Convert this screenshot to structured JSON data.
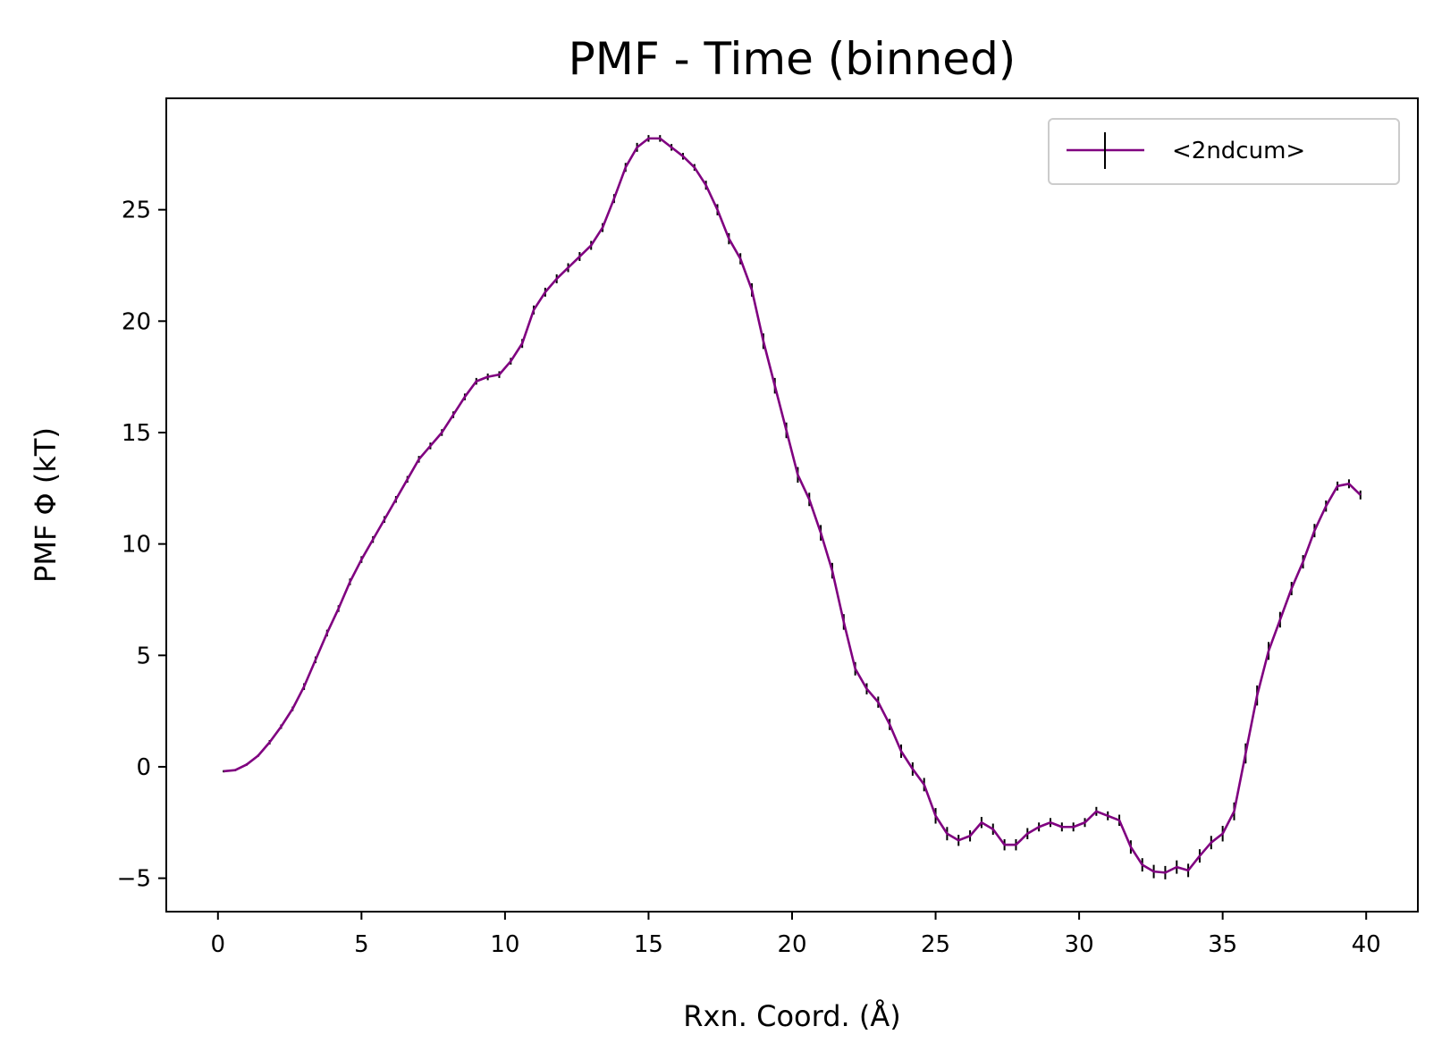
{
  "chart_data": {
    "type": "line",
    "title": "PMF - Time (binned)",
    "xlabel": "Rxn. Coord. (Å)",
    "ylabel": "PMF Φ (kT)",
    "xlim": [
      -1.8,
      41.8
    ],
    "ylim": [
      -6.5,
      30.0
    ],
    "xticks": [
      0,
      5,
      10,
      15,
      20,
      25,
      30,
      35,
      40
    ],
    "xtick_labels": [
      "0",
      "5",
      "10",
      "15",
      "20",
      "25",
      "30",
      "35",
      "40"
    ],
    "yticks": [
      -5,
      0,
      5,
      10,
      15,
      20,
      25
    ],
    "ytick_labels": [
      "−5",
      "0",
      "5",
      "10",
      "15",
      "20",
      "25"
    ],
    "grid": false,
    "legend": {
      "placement": "top-right",
      "entries": [
        "<2ndcum>"
      ]
    },
    "series": [
      {
        "name": "<2ndcum>",
        "color": "#800080",
        "errorbar_color": "#000000",
        "x": [
          0.2,
          0.6,
          1.0,
          1.4,
          1.8,
          2.2,
          2.6,
          3.0,
          3.4,
          3.8,
          4.2,
          4.6,
          5.0,
          5.4,
          5.8,
          6.2,
          6.6,
          7.0,
          7.4,
          7.8,
          8.2,
          8.6,
          9.0,
          9.4,
          9.8,
          10.2,
          10.6,
          11.0,
          11.4,
          11.8,
          12.2,
          12.6,
          13.0,
          13.4,
          13.8,
          14.2,
          14.6,
          15.0,
          15.4,
          15.8,
          16.2,
          16.6,
          17.0,
          17.4,
          17.8,
          18.2,
          18.6,
          19.0,
          19.4,
          19.8,
          20.2,
          20.6,
          21.0,
          21.4,
          21.8,
          22.2,
          22.6,
          23.0,
          23.4,
          23.8,
          24.2,
          24.6,
          25.0,
          25.4,
          25.8,
          26.2,
          26.6,
          27.0,
          27.4,
          27.8,
          28.2,
          28.6,
          29.0,
          29.4,
          29.8,
          30.2,
          30.6,
          31.0,
          31.4,
          31.8,
          32.2,
          32.6,
          33.0,
          33.4,
          33.8,
          34.2,
          34.6,
          35.0,
          35.4,
          35.8,
          36.2,
          36.6,
          37.0,
          37.4,
          37.8,
          38.2,
          38.6,
          39.0,
          39.4,
          39.8
        ],
        "y": [
          -0.2,
          -0.15,
          0.1,
          0.5,
          1.1,
          1.8,
          2.6,
          3.6,
          4.8,
          6.0,
          7.1,
          8.3,
          9.3,
          10.2,
          11.1,
          12.0,
          12.9,
          13.8,
          14.4,
          15.0,
          15.8,
          16.6,
          17.3,
          17.5,
          17.6,
          18.2,
          19.0,
          20.5,
          21.3,
          21.9,
          22.4,
          22.9,
          23.4,
          24.2,
          25.5,
          26.9,
          27.8,
          28.2,
          28.2,
          27.8,
          27.4,
          26.9,
          26.1,
          25.0,
          23.7,
          22.8,
          21.4,
          19.1,
          17.1,
          15.1,
          13.1,
          12.0,
          10.5,
          8.8,
          6.5,
          4.4,
          3.5,
          2.9,
          1.9,
          0.7,
          -0.1,
          -0.8,
          -2.2,
          -3.0,
          -3.3,
          -3.1,
          -2.5,
          -2.8,
          -3.5,
          -3.5,
          -3.0,
          -2.7,
          -2.5,
          -2.7,
          -2.7,
          -2.5,
          -2.0,
          -2.2,
          -2.4,
          -3.6,
          -4.4,
          -4.7,
          -4.75,
          -4.5,
          -4.65,
          -4.0,
          -3.4,
          -3.0,
          -2.0,
          0.6,
          3.2,
          5.2,
          6.6,
          8.0,
          9.2,
          10.6,
          11.7,
          12.6,
          12.7,
          12.2
        ],
        "yerr": [
          0.05,
          0.05,
          0.05,
          0.05,
          0.1,
          0.1,
          0.1,
          0.15,
          0.15,
          0.15,
          0.15,
          0.15,
          0.15,
          0.15,
          0.15,
          0.15,
          0.15,
          0.15,
          0.15,
          0.15,
          0.15,
          0.15,
          0.15,
          0.15,
          0.15,
          0.15,
          0.2,
          0.2,
          0.2,
          0.2,
          0.2,
          0.2,
          0.2,
          0.2,
          0.2,
          0.2,
          0.2,
          0.15,
          0.15,
          0.15,
          0.15,
          0.15,
          0.2,
          0.25,
          0.25,
          0.25,
          0.3,
          0.35,
          0.35,
          0.35,
          0.35,
          0.3,
          0.35,
          0.35,
          0.35,
          0.3,
          0.25,
          0.25,
          0.25,
          0.3,
          0.3,
          0.3,
          0.35,
          0.3,
          0.25,
          0.25,
          0.25,
          0.25,
          0.25,
          0.25,
          0.25,
          0.2,
          0.2,
          0.2,
          0.2,
          0.2,
          0.2,
          0.2,
          0.25,
          0.3,
          0.3,
          0.3,
          0.3,
          0.3,
          0.3,
          0.3,
          0.3,
          0.35,
          0.4,
          0.45,
          0.45,
          0.4,
          0.35,
          0.3,
          0.3,
          0.3,
          0.25,
          0.2,
          0.2,
          0.2
        ]
      }
    ]
  }
}
